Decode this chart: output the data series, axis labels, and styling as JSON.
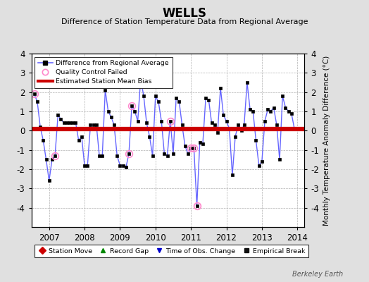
{
  "title": "WELLS",
  "subtitle": "Difference of Station Temperature Data from Regional Average",
  "ylabel_right": "Monthly Temperature Anomaly Difference (°C)",
  "bias_value": 0.07,
  "ylim": [
    -5,
    4
  ],
  "xlim": [
    2006.5,
    2014.2
  ],
  "xticks": [
    2007,
    2008,
    2009,
    2010,
    2011,
    2012,
    2013,
    2014
  ],
  "yticks": [
    -4,
    -3,
    -2,
    -1,
    0,
    1,
    2,
    3,
    4
  ],
  "background_color": "#e0e0e0",
  "plot_bg_color": "#ffffff",
  "line_color": "#6666ff",
  "marker_color": "#000000",
  "bias_color": "#cc0000",
  "qc_color": "#ff88cc",
  "watermark": "Berkeley Earth",
  "data": [
    [
      2006.583,
      1.9
    ],
    [
      2006.667,
      1.5
    ],
    [
      2006.75,
      0.2
    ],
    [
      2006.833,
      -0.5
    ],
    [
      2006.917,
      -1.5
    ],
    [
      2007.0,
      -2.6
    ],
    [
      2007.083,
      -1.5
    ],
    [
      2007.167,
      -1.3
    ],
    [
      2007.25,
      0.8
    ],
    [
      2007.333,
      0.6
    ],
    [
      2007.417,
      0.4
    ],
    [
      2007.5,
      0.4
    ],
    [
      2007.583,
      0.4
    ],
    [
      2007.667,
      0.4
    ],
    [
      2007.75,
      0.4
    ],
    [
      2007.833,
      -0.5
    ],
    [
      2007.917,
      -0.3
    ],
    [
      2008.0,
      -1.8
    ],
    [
      2008.083,
      -1.8
    ],
    [
      2008.167,
      0.3
    ],
    [
      2008.25,
      0.3
    ],
    [
      2008.333,
      0.3
    ],
    [
      2008.417,
      -1.3
    ],
    [
      2008.5,
      -1.3
    ],
    [
      2008.583,
      2.1
    ],
    [
      2008.667,
      1.0
    ],
    [
      2008.75,
      0.7
    ],
    [
      2008.833,
      0.3
    ],
    [
      2008.917,
      -1.3
    ],
    [
      2009.0,
      -1.8
    ],
    [
      2009.083,
      -1.8
    ],
    [
      2009.167,
      -1.9
    ],
    [
      2009.25,
      -1.2
    ],
    [
      2009.333,
      1.3
    ],
    [
      2009.417,
      1.0
    ],
    [
      2009.5,
      0.5
    ],
    [
      2009.583,
      2.7
    ],
    [
      2009.667,
      1.8
    ],
    [
      2009.75,
      0.4
    ],
    [
      2009.833,
      -0.3
    ],
    [
      2009.917,
      -1.3
    ],
    [
      2010.0,
      1.8
    ],
    [
      2010.083,
      1.5
    ],
    [
      2010.167,
      0.5
    ],
    [
      2010.25,
      -1.2
    ],
    [
      2010.333,
      -1.3
    ],
    [
      2010.417,
      0.5
    ],
    [
      2010.5,
      -1.2
    ],
    [
      2010.583,
      1.7
    ],
    [
      2010.667,
      1.5
    ],
    [
      2010.75,
      0.3
    ],
    [
      2010.833,
      -0.8
    ],
    [
      2010.917,
      -1.2
    ],
    [
      2011.0,
      -0.9
    ],
    [
      2011.083,
      -0.9
    ],
    [
      2011.167,
      -3.9
    ],
    [
      2011.25,
      -0.6
    ],
    [
      2011.333,
      -0.7
    ],
    [
      2011.417,
      1.7
    ],
    [
      2011.5,
      1.6
    ],
    [
      2011.583,
      0.4
    ],
    [
      2011.667,
      0.3
    ],
    [
      2011.75,
      -0.1
    ],
    [
      2011.833,
      2.2
    ],
    [
      2011.917,
      0.8
    ],
    [
      2012.0,
      0.5
    ],
    [
      2012.083,
      0.1
    ],
    [
      2012.167,
      -2.3
    ],
    [
      2012.25,
      -0.3
    ],
    [
      2012.333,
      0.3
    ],
    [
      2012.417,
      0.0
    ],
    [
      2012.5,
      0.3
    ],
    [
      2012.583,
      2.5
    ],
    [
      2012.667,
      1.1
    ],
    [
      2012.75,
      1.0
    ],
    [
      2012.833,
      -0.5
    ],
    [
      2012.917,
      -1.8
    ],
    [
      2013.0,
      -1.6
    ],
    [
      2013.083,
      0.5
    ],
    [
      2013.167,
      1.1
    ],
    [
      2013.25,
      1.0
    ],
    [
      2013.333,
      1.2
    ],
    [
      2013.417,
      0.3
    ],
    [
      2013.5,
      -1.5
    ],
    [
      2013.583,
      1.8
    ],
    [
      2013.667,
      1.2
    ],
    [
      2013.75,
      1.0
    ],
    [
      2013.833,
      0.9
    ],
    [
      2013.917,
      0.1
    ]
  ],
  "qc_failed": [
    [
      2006.583,
      1.9
    ],
    [
      2007.167,
      -1.3
    ],
    [
      2009.25,
      -1.2
    ],
    [
      2009.333,
      1.3
    ],
    [
      2010.417,
      0.5
    ],
    [
      2011.0,
      -0.9
    ],
    [
      2011.083,
      -0.9
    ],
    [
      2011.167,
      -3.9
    ]
  ]
}
